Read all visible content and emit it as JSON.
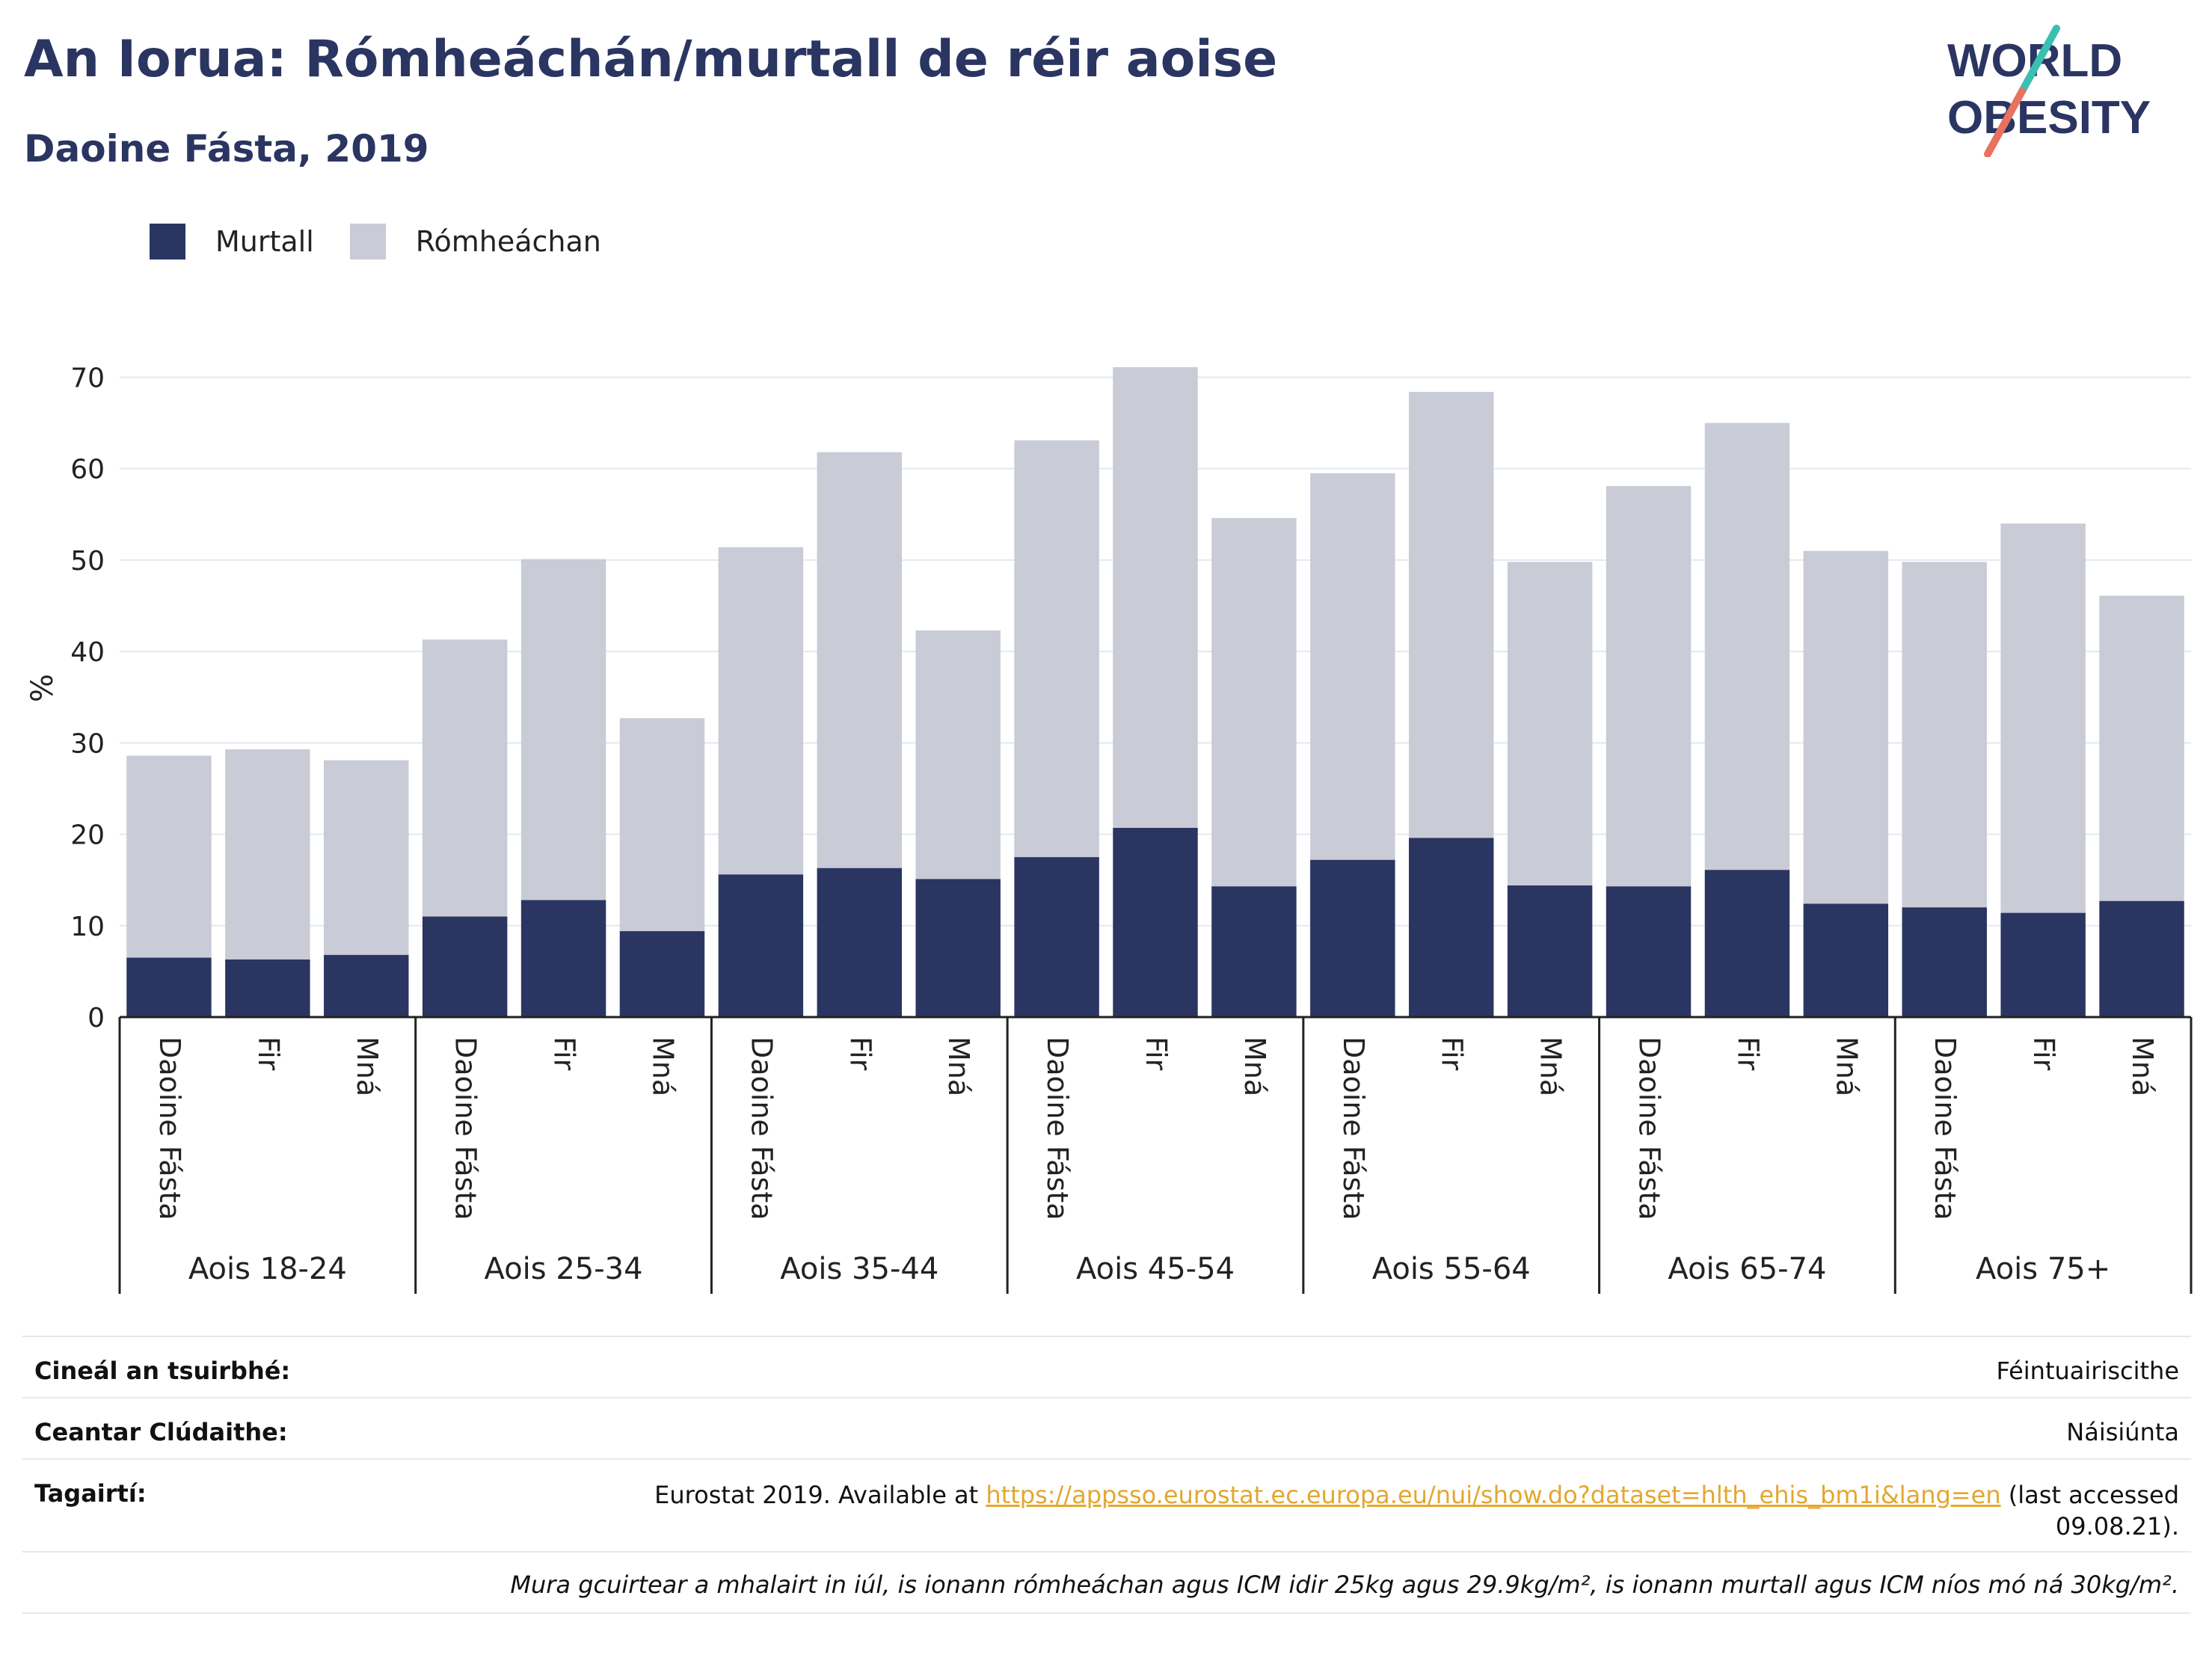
{
  "title": "An Iorua: Rómheáchán/murtall de réir aoise",
  "subtitle": "Daoine Fásta, 2019",
  "logo": {
    "line1": "WORLD",
    "line2": "OBESITY"
  },
  "colors": {
    "obesity": "#2a3562",
    "overweight": "#c9cbd6",
    "accent_teal": "#3bbfb3",
    "accent_red": "#e8715f",
    "link": "#e3a72f"
  },
  "legend": [
    {
      "label": "Murtall",
      "color": "#2a3562"
    },
    {
      "label": "Rómheáchan",
      "color": "#c9cbd6"
    }
  ],
  "chart_data": {
    "type": "bar",
    "stacked": true,
    "ylabel": "%",
    "ylim": [
      0,
      72
    ],
    "yticks": [
      0,
      10,
      20,
      30,
      40,
      50,
      60,
      70
    ],
    "grid": true,
    "legend_position": "top-left",
    "groups": [
      "Aois 18-24",
      "Aois 25-34",
      "Aois 35-44",
      "Aois 45-54",
      "Aois 55-64",
      "Aois 65-74",
      "Aois 75+"
    ],
    "subcategories": [
      "Daoine Fásta",
      "Fir",
      "Mná"
    ],
    "series": [
      {
        "name": "Murtall",
        "color": "#2a3562",
        "values": [
          6.5,
          6.3,
          6.8,
          11.0,
          12.8,
          9.4,
          15.6,
          16.3,
          15.1,
          17.5,
          20.7,
          14.3,
          17.2,
          19.6,
          14.4,
          14.3,
          16.1,
          12.4,
          12.0,
          11.4,
          12.7
        ]
      },
      {
        "name": "Rómheáchan",
        "color": "#c9cbd6",
        "values": [
          22.1,
          23.0,
          21.3,
          30.3,
          37.3,
          23.3,
          35.8,
          45.5,
          27.2,
          45.6,
          50.4,
          40.3,
          42.3,
          48.8,
          35.4,
          43.8,
          48.9,
          38.6,
          37.8,
          42.6,
          33.4
        ]
      }
    ],
    "totals": [
      28.6,
      29.3,
      28.1,
      41.3,
      50.1,
      32.7,
      51.4,
      61.8,
      42.3,
      63.1,
      71.1,
      54.6,
      59.5,
      68.4,
      49.8,
      58.1,
      65.0,
      51.0,
      49.8,
      54.0,
      46.1
    ]
  },
  "meta": {
    "survey_type_label": "Cineál an tsuirbhé:",
    "survey_type_value": "Féintuairiscithe",
    "area_label": "Ceantar Clúdaithe:",
    "area_value": "Náisiúnta",
    "references_label": "Tagairtí:",
    "references_prefix": "Eurostat 2019. Available at ",
    "references_link": "https://appsso.eurostat.ec.europa.eu/nui/show.do?dataset=hlth_ehis_bm1i&lang=en",
    "references_suffix": " (last accessed",
    "references_date": "09.08.21).",
    "note": "Mura gcuirtear a mhalairt in iúl, is ionann rómheáchan agus ICM idir 25kg agus 29.9kg/m², is ionann murtall agus ICM níos mó ná 30kg/m²."
  }
}
